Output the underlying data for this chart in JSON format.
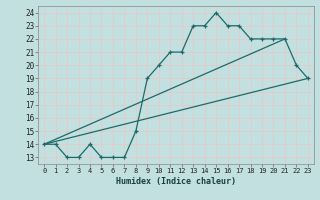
{
  "xlabel": "Humidex (Indice chaleur)",
  "bg_color": "#c2e0e0",
  "grid_color": "#e8c8c8",
  "line_color": "#1a6b6b",
  "xlim": [
    -0.5,
    23.5
  ],
  "ylim": [
    12.5,
    24.5
  ],
  "xticks": [
    0,
    1,
    2,
    3,
    4,
    5,
    6,
    7,
    8,
    9,
    10,
    11,
    12,
    13,
    14,
    15,
    16,
    17,
    18,
    19,
    20,
    21,
    22,
    23
  ],
  "yticks": [
    13,
    14,
    15,
    16,
    17,
    18,
    19,
    20,
    21,
    22,
    23,
    24
  ],
  "line1_x": [
    0,
    1,
    2,
    3,
    4,
    5,
    6,
    7,
    8,
    9,
    10,
    11,
    12,
    13,
    14,
    15,
    16,
    17,
    18,
    19,
    20,
    21,
    22,
    23
  ],
  "line1_y": [
    14,
    14,
    13,
    13,
    14,
    13,
    13,
    13,
    15,
    19,
    20,
    21,
    21,
    23,
    23,
    24,
    23,
    23,
    22,
    22,
    22,
    22,
    20,
    19
  ],
  "line2_x": [
    0,
    23
  ],
  "line2_y": [
    14,
    19
  ],
  "line3_x": [
    0,
    21
  ],
  "line3_y": [
    14,
    22
  ]
}
